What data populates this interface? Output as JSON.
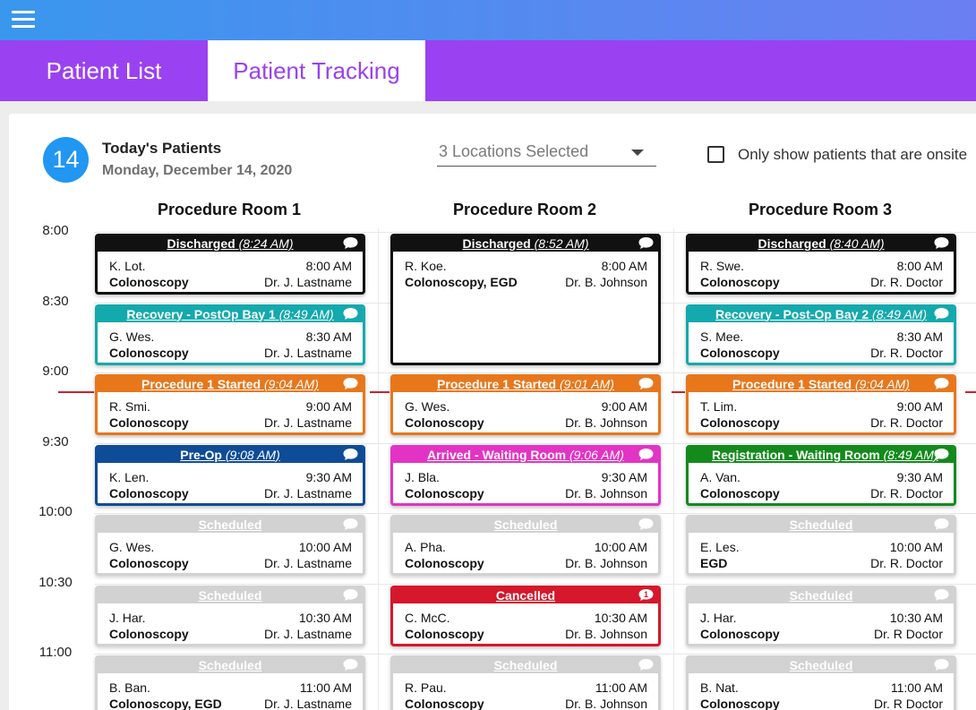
{
  "header": {
    "menu_icon": "hamburger-icon"
  },
  "tabs": {
    "patient_list": "Patient List",
    "patient_tracking": "Patient Tracking"
  },
  "summary": {
    "day": "14",
    "title": "Today's Patients",
    "date": "Monday, December 14, 2020"
  },
  "filters": {
    "locations": "3 Locations Selected",
    "onsite_label": "Only show patients that are onsite",
    "onsite_checked": false
  },
  "rooms": [
    "Procedure Room 1",
    "Procedure Room 2",
    "Procedure Room 3"
  ],
  "times": [
    "8:00",
    "8:30",
    "9:00",
    "9:30",
    "10:00",
    "10:30",
    "11:00"
  ],
  "colors": {
    "discharged": "#111111",
    "recovery": "#14a9ad",
    "procedure": "#e8771c",
    "preop": "#0f4c97",
    "arrived": "#e333c4",
    "registration": "#138a1c",
    "scheduled": "#d2d2d2",
    "cancelled": "#d5182b",
    "now_line": "#c8232c"
  },
  "cards": [
    {
      "room": 0,
      "row": 0,
      "status": "Discharged",
      "time": "(8:24 AM)",
      "color": "discharged",
      "patient": "K. Lot.",
      "appt": "8:00 AM",
      "procedure": "Colonoscopy",
      "doctor": "Dr. J. Lastname"
    },
    {
      "room": 0,
      "row": 1,
      "status": "Recovery - PostOp Bay 1",
      "time": "(8:49 AM)",
      "color": "recovery",
      "patient": "G. Wes.",
      "appt": "8:30 AM",
      "procedure": "Colonoscopy",
      "doctor": "Dr. J. Lastname"
    },
    {
      "room": 0,
      "row": 2,
      "status": "Procedure 1 Started",
      "time": "(9:04 AM)",
      "color": "procedure",
      "patient": "R. Smi.",
      "appt": "9:00 AM",
      "procedure": "Colonoscopy",
      "doctor": "Dr. J. Lastname"
    },
    {
      "room": 0,
      "row": 3,
      "status": "Pre-Op",
      "time": "(9:08 AM)",
      "color": "preop",
      "patient": "K. Len.",
      "appt": "9:30 AM",
      "procedure": "Colonoscopy",
      "doctor": "Dr. J. Lastname"
    },
    {
      "room": 0,
      "row": 4,
      "status": "Scheduled",
      "time": "",
      "color": "scheduled",
      "patient": "G. Wes.",
      "appt": "10:00 AM",
      "procedure": "Colonoscopy",
      "doctor": "Dr. J. Lastname"
    },
    {
      "room": 0,
      "row": 5,
      "status": "Scheduled",
      "time": "",
      "color": "scheduled",
      "patient": "J. Har.",
      "appt": "10:30 AM",
      "procedure": "Colonoscopy",
      "doctor": "Dr. J. Lastname"
    },
    {
      "room": 0,
      "row": 6,
      "status": "Scheduled",
      "time": "",
      "color": "scheduled",
      "patient": "B. Ban.",
      "appt": "11:00 AM",
      "procedure": "Colonoscopy, EGD",
      "doctor": "Dr. J. Lastname"
    },
    {
      "room": 1,
      "row": 0,
      "span": 2,
      "status": "Discharged",
      "time": "(8:52 AM)",
      "color": "discharged",
      "patient": "R. Koe.",
      "appt": "8:00 AM",
      "procedure": "Colonoscopy, EGD",
      "doctor": "Dr. B. Johnson"
    },
    {
      "room": 1,
      "row": 2,
      "status": "Procedure 1 Started",
      "time": "(9:01 AM)",
      "color": "procedure",
      "patient": "G. Wes.",
      "appt": "9:00 AM",
      "procedure": "Colonoscopy",
      "doctor": "Dr. B. Johnson"
    },
    {
      "room": 1,
      "row": 3,
      "status": "Arrived - Waiting Room",
      "time": "(9:06 AM)",
      "color": "arrived",
      "patient": "J. Bla.",
      "appt": "9:30 AM",
      "procedure": "Colonoscopy",
      "doctor": "Dr. B. Johnson"
    },
    {
      "room": 1,
      "row": 4,
      "status": "Scheduled",
      "time": "",
      "color": "scheduled",
      "patient": "A. Pha.",
      "appt": "10:00 AM",
      "procedure": "Colonoscopy",
      "doctor": "Dr. B. Johnson"
    },
    {
      "room": 1,
      "row": 5,
      "status": "Cancelled",
      "time": "",
      "color": "cancelled",
      "badge": "1",
      "patient": "C. McC.",
      "appt": "10:30 AM",
      "procedure": "Colonoscopy",
      "doctor": "Dr. B. Johnson"
    },
    {
      "room": 1,
      "row": 6,
      "status": "Scheduled",
      "time": "",
      "color": "scheduled",
      "patient": "R. Pau.",
      "appt": "11:00 AM",
      "procedure": "Colonoscopy",
      "doctor": "Dr. B. Johnson"
    },
    {
      "room": 2,
      "row": 0,
      "status": "Discharged",
      "time": "(8:40 AM)",
      "color": "discharged",
      "patient": "R. Swe.",
      "appt": "8:00 AM",
      "procedure": "Colonoscopy",
      "doctor": "Dr. R. Doctor"
    },
    {
      "room": 2,
      "row": 1,
      "status": "Recovery - Post-Op Bay 2",
      "time": "(8:49 AM)",
      "color": "recovery",
      "patient": "S. Mee.",
      "appt": "8:30 AM",
      "procedure": "Colonoscopy",
      "doctor": "Dr. R. Doctor"
    },
    {
      "room": 2,
      "row": 2,
      "status": "Procedure 1 Started",
      "time": "(9:04 AM)",
      "color": "procedure",
      "patient": "T. Lim.",
      "appt": "9:00 AM",
      "procedure": "Colonoscopy",
      "doctor": "Dr. R. Doctor"
    },
    {
      "room": 2,
      "row": 3,
      "status": "Registration - Waiting Room",
      "time": "(8:49 AM)",
      "color": "registration",
      "patient": "A. Van.",
      "appt": "9:30 AM",
      "procedure": "Colonoscopy",
      "doctor": "Dr. R. Doctor"
    },
    {
      "room": 2,
      "row": 4,
      "status": "Scheduled",
      "time": "",
      "color": "scheduled",
      "patient": "E. Les.",
      "appt": "10:00 AM",
      "procedure": "EGD",
      "doctor": "Dr. R. Doctor"
    },
    {
      "room": 2,
      "row": 5,
      "status": "Scheduled",
      "time": "",
      "color": "scheduled",
      "patient": "J. Har.",
      "appt": "10:30 AM",
      "procedure": "Colonoscopy",
      "doctor": "Dr. R Doctor"
    },
    {
      "room": 2,
      "row": 6,
      "status": "Scheduled",
      "time": "",
      "color": "scheduled",
      "patient": "B. Nat.",
      "appt": "11:00 AM",
      "procedure": "Colonoscopy",
      "doctor": "Dr. R Doctor"
    }
  ]
}
